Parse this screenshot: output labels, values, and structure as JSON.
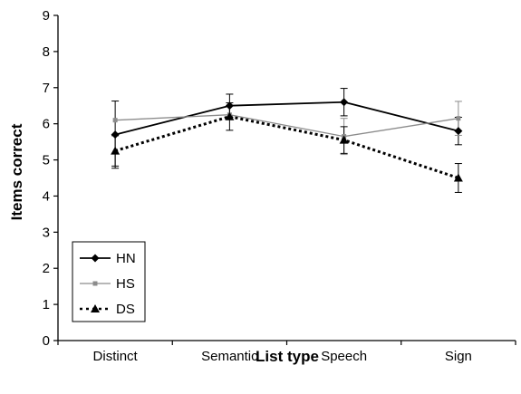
{
  "chart_data": {
    "type": "line",
    "title": "",
    "xlabel": "List type",
    "ylabel": "Items correct",
    "categories": [
      "Distinct",
      "Semantic",
      "Speech",
      "Sign"
    ],
    "ylim": [
      0,
      9
    ],
    "yticks": [
      "0",
      "1",
      "2",
      "3",
      "4",
      "5",
      "6",
      "7",
      "8",
      "9"
    ],
    "grid": false,
    "legend_position": "bottom-left",
    "series": [
      {
        "name": "HN",
        "values": [
          5.7,
          6.5,
          6.6,
          5.8
        ],
        "error": [
          0.93,
          0.32,
          0.38,
          0.38
        ],
        "color": "#000000",
        "line": "solid",
        "marker": "diamond"
      },
      {
        "name": "HS",
        "values": [
          6.1,
          6.25,
          5.65,
          6.15
        ],
        "error": [
          0.0,
          0.0,
          0.5,
          0.47
        ],
        "color": "#8c8c8c",
        "line": "solid",
        "marker": "square"
      },
      {
        "name": "DS",
        "values": [
          5.25,
          6.2,
          5.55,
          4.5
        ],
        "error": [
          0.42,
          0.38,
          0.37,
          0.4
        ],
        "color": "#000000",
        "line": "dotted",
        "marker": "triangle"
      }
    ]
  }
}
